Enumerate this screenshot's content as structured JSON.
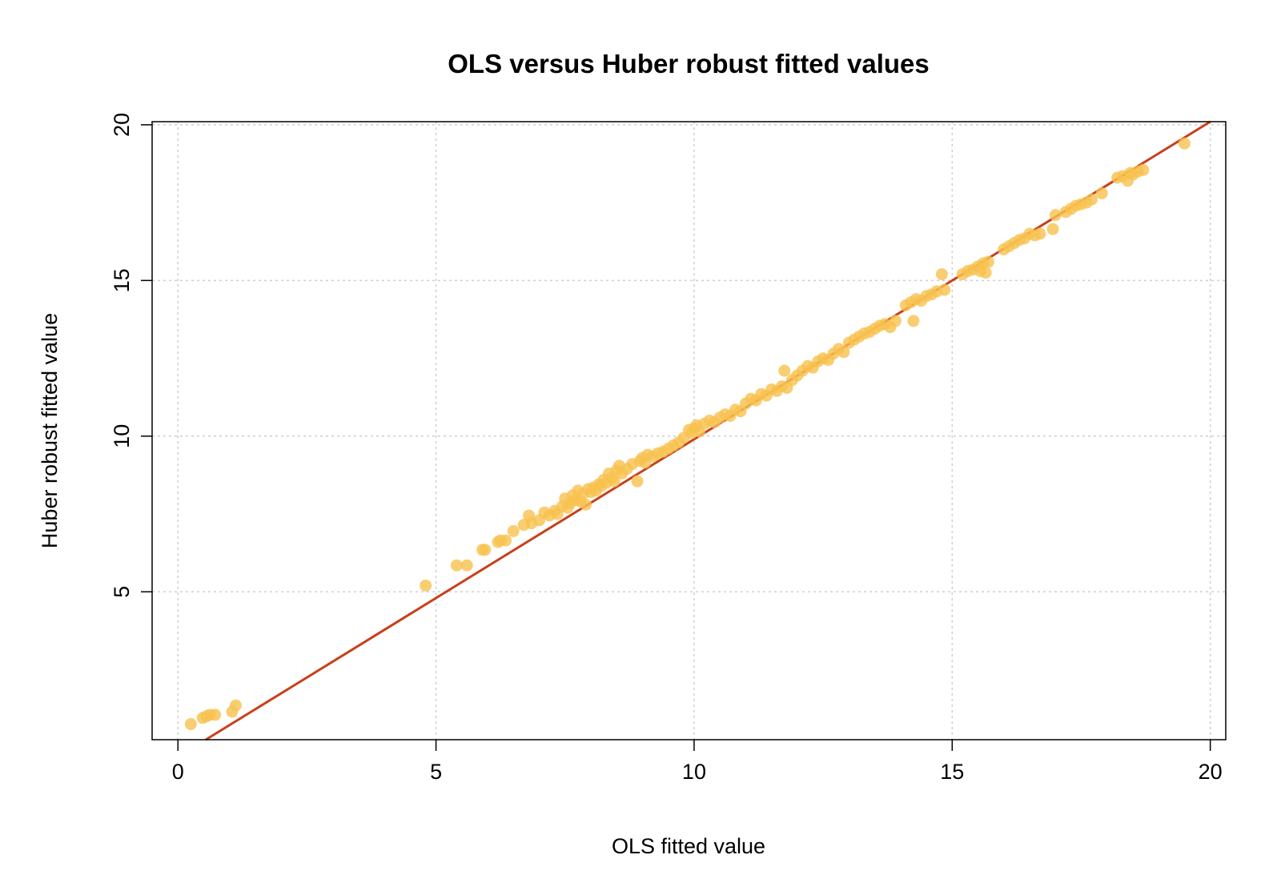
{
  "chart_data": {
    "type": "scatter",
    "title": "OLS versus Huber robust fitted values",
    "xlabel": "OLS fitted value",
    "ylabel": "Huber robust fitted value",
    "xlim": [
      -0.5,
      20.3
    ],
    "ylim": [
      0.25,
      20.1
    ],
    "x_ticks": [
      0,
      5,
      10,
      15,
      20
    ],
    "y_ticks": [
      5,
      10,
      15,
      20
    ],
    "grid": true,
    "legend": "none",
    "point_color": "#F8C24F",
    "line_color": "#C8401A",
    "reference_line": {
      "intercept": -0.3,
      "slope": 1.02
    },
    "series": [
      {
        "values": [
          {
            "x": 0.25,
            "y": 0.75
          },
          {
            "x": 0.48,
            "y": 0.95
          },
          {
            "x": 0.55,
            "y": 1.0
          },
          {
            "x": 0.62,
            "y": 1.05
          },
          {
            "x": 0.72,
            "y": 1.05
          },
          {
            "x": 1.05,
            "y": 1.15
          },
          {
            "x": 1.12,
            "y": 1.35
          },
          {
            "x": 4.8,
            "y": 5.2
          },
          {
            "x": 5.4,
            "y": 5.85
          },
          {
            "x": 5.6,
            "y": 5.85
          },
          {
            "x": 5.9,
            "y": 6.35
          },
          {
            "x": 5.95,
            "y": 6.35
          },
          {
            "x": 6.2,
            "y": 6.6
          },
          {
            "x": 6.25,
            "y": 6.65
          },
          {
            "x": 6.35,
            "y": 6.65
          },
          {
            "x": 6.5,
            "y": 6.95
          },
          {
            "x": 6.7,
            "y": 7.15
          },
          {
            "x": 6.8,
            "y": 7.45
          },
          {
            "x": 6.85,
            "y": 7.2
          },
          {
            "x": 7.0,
            "y": 7.3
          },
          {
            "x": 7.1,
            "y": 7.55
          },
          {
            "x": 7.2,
            "y": 7.45
          },
          {
            "x": 7.3,
            "y": 7.6
          },
          {
            "x": 7.35,
            "y": 7.5
          },
          {
            "x": 7.45,
            "y": 7.75
          },
          {
            "x": 7.5,
            "y": 8.0
          },
          {
            "x": 7.55,
            "y": 7.7
          },
          {
            "x": 7.6,
            "y": 7.85
          },
          {
            "x": 7.65,
            "y": 8.1
          },
          {
            "x": 7.7,
            "y": 7.95
          },
          {
            "x": 7.75,
            "y": 8.25
          },
          {
            "x": 7.8,
            "y": 7.9
          },
          {
            "x": 7.85,
            "y": 8.15
          },
          {
            "x": 7.9,
            "y": 7.8
          },
          {
            "x": 7.95,
            "y": 8.3
          },
          {
            "x": 8.0,
            "y": 8.2
          },
          {
            "x": 8.05,
            "y": 8.35
          },
          {
            "x": 8.1,
            "y": 8.25
          },
          {
            "x": 8.15,
            "y": 8.45
          },
          {
            "x": 8.2,
            "y": 8.4
          },
          {
            "x": 8.25,
            "y": 8.6
          },
          {
            "x": 8.3,
            "y": 8.5
          },
          {
            "x": 8.35,
            "y": 8.8
          },
          {
            "x": 8.4,
            "y": 8.65
          },
          {
            "x": 8.45,
            "y": 8.55
          },
          {
            "x": 8.5,
            "y": 8.9
          },
          {
            "x": 8.55,
            "y": 9.05
          },
          {
            "x": 8.6,
            "y": 8.8
          },
          {
            "x": 8.7,
            "y": 8.95
          },
          {
            "x": 8.8,
            "y": 9.1
          },
          {
            "x": 8.9,
            "y": 8.55
          },
          {
            "x": 8.95,
            "y": 9.2
          },
          {
            "x": 9.0,
            "y": 9.3
          },
          {
            "x": 9.05,
            "y": 9.15
          },
          {
            "x": 9.1,
            "y": 9.4
          },
          {
            "x": 9.2,
            "y": 9.35
          },
          {
            "x": 9.3,
            "y": 9.45
          },
          {
            "x": 9.4,
            "y": 9.5
          },
          {
            "x": 9.5,
            "y": 9.6
          },
          {
            "x": 9.6,
            "y": 9.7
          },
          {
            "x": 9.7,
            "y": 9.8
          },
          {
            "x": 9.8,
            "y": 9.95
          },
          {
            "x": 9.9,
            "y": 10.2
          },
          {
            "x": 9.95,
            "y": 10.1
          },
          {
            "x": 10.0,
            "y": 10.25
          },
          {
            "x": 10.05,
            "y": 10.35
          },
          {
            "x": 10.1,
            "y": 10.15
          },
          {
            "x": 10.2,
            "y": 10.4
          },
          {
            "x": 10.3,
            "y": 10.5
          },
          {
            "x": 10.4,
            "y": 10.45
          },
          {
            "x": 10.5,
            "y": 10.6
          },
          {
            "x": 10.6,
            "y": 10.7
          },
          {
            "x": 10.7,
            "y": 10.65
          },
          {
            "x": 10.8,
            "y": 10.85
          },
          {
            "x": 10.9,
            "y": 10.8
          },
          {
            "x": 11.0,
            "y": 11.05
          },
          {
            "x": 11.1,
            "y": 11.2
          },
          {
            "x": 11.2,
            "y": 11.15
          },
          {
            "x": 11.3,
            "y": 11.35
          },
          {
            "x": 11.4,
            "y": 11.3
          },
          {
            "x": 11.5,
            "y": 11.5
          },
          {
            "x": 11.6,
            "y": 11.45
          },
          {
            "x": 11.7,
            "y": 11.6
          },
          {
            "x": 11.75,
            "y": 12.1
          },
          {
            "x": 11.8,
            "y": 11.55
          },
          {
            "x": 11.9,
            "y": 11.8
          },
          {
            "x": 12.0,
            "y": 11.95
          },
          {
            "x": 12.1,
            "y": 12.1
          },
          {
            "x": 12.2,
            "y": 12.25
          },
          {
            "x": 12.3,
            "y": 12.2
          },
          {
            "x": 12.4,
            "y": 12.4
          },
          {
            "x": 12.5,
            "y": 12.5
          },
          {
            "x": 12.6,
            "y": 12.45
          },
          {
            "x": 12.7,
            "y": 12.65
          },
          {
            "x": 12.8,
            "y": 12.8
          },
          {
            "x": 12.9,
            "y": 12.7
          },
          {
            "x": 13.0,
            "y": 13.0
          },
          {
            "x": 13.1,
            "y": 13.1
          },
          {
            "x": 13.2,
            "y": 13.2
          },
          {
            "x": 13.3,
            "y": 13.3
          },
          {
            "x": 13.4,
            "y": 13.35
          },
          {
            "x": 13.5,
            "y": 13.45
          },
          {
            "x": 13.6,
            "y": 13.55
          },
          {
            "x": 13.7,
            "y": 13.6
          },
          {
            "x": 13.8,
            "y": 13.5
          },
          {
            "x": 13.9,
            "y": 13.7
          },
          {
            "x": 14.1,
            "y": 14.2
          },
          {
            "x": 14.2,
            "y": 14.3
          },
          {
            "x": 14.25,
            "y": 13.7
          },
          {
            "x": 14.3,
            "y": 14.4
          },
          {
            "x": 14.4,
            "y": 14.35
          },
          {
            "x": 14.5,
            "y": 14.5
          },
          {
            "x": 14.6,
            "y": 14.55
          },
          {
            "x": 14.7,
            "y": 14.65
          },
          {
            "x": 14.8,
            "y": 15.2
          },
          {
            "x": 14.85,
            "y": 14.7
          },
          {
            "x": 15.2,
            "y": 15.2
          },
          {
            "x": 15.3,
            "y": 15.3
          },
          {
            "x": 15.4,
            "y": 15.35
          },
          {
            "x": 15.5,
            "y": 15.45
          },
          {
            "x": 15.55,
            "y": 15.3
          },
          {
            "x": 15.6,
            "y": 15.55
          },
          {
            "x": 15.65,
            "y": 15.25
          },
          {
            "x": 15.7,
            "y": 15.6
          },
          {
            "x": 16.0,
            "y": 16.0
          },
          {
            "x": 16.1,
            "y": 16.1
          },
          {
            "x": 16.2,
            "y": 16.2
          },
          {
            "x": 16.3,
            "y": 16.3
          },
          {
            "x": 16.4,
            "y": 16.35
          },
          {
            "x": 16.5,
            "y": 16.5
          },
          {
            "x": 16.6,
            "y": 16.45
          },
          {
            "x": 16.7,
            "y": 16.5
          },
          {
            "x": 16.95,
            "y": 16.65
          },
          {
            "x": 17.0,
            "y": 17.1
          },
          {
            "x": 17.2,
            "y": 17.2
          },
          {
            "x": 17.3,
            "y": 17.3
          },
          {
            "x": 17.4,
            "y": 17.4
          },
          {
            "x": 17.5,
            "y": 17.45
          },
          {
            "x": 17.6,
            "y": 17.5
          },
          {
            "x": 17.7,
            "y": 17.6
          },
          {
            "x": 17.9,
            "y": 17.8
          },
          {
            "x": 18.2,
            "y": 18.3
          },
          {
            "x": 18.3,
            "y": 18.35
          },
          {
            "x": 18.4,
            "y": 18.2
          },
          {
            "x": 18.45,
            "y": 18.45
          },
          {
            "x": 18.5,
            "y": 18.4
          },
          {
            "x": 18.6,
            "y": 18.5
          },
          {
            "x": 18.7,
            "y": 18.55
          },
          {
            "x": 19.5,
            "y": 19.4
          }
        ]
      }
    ]
  }
}
